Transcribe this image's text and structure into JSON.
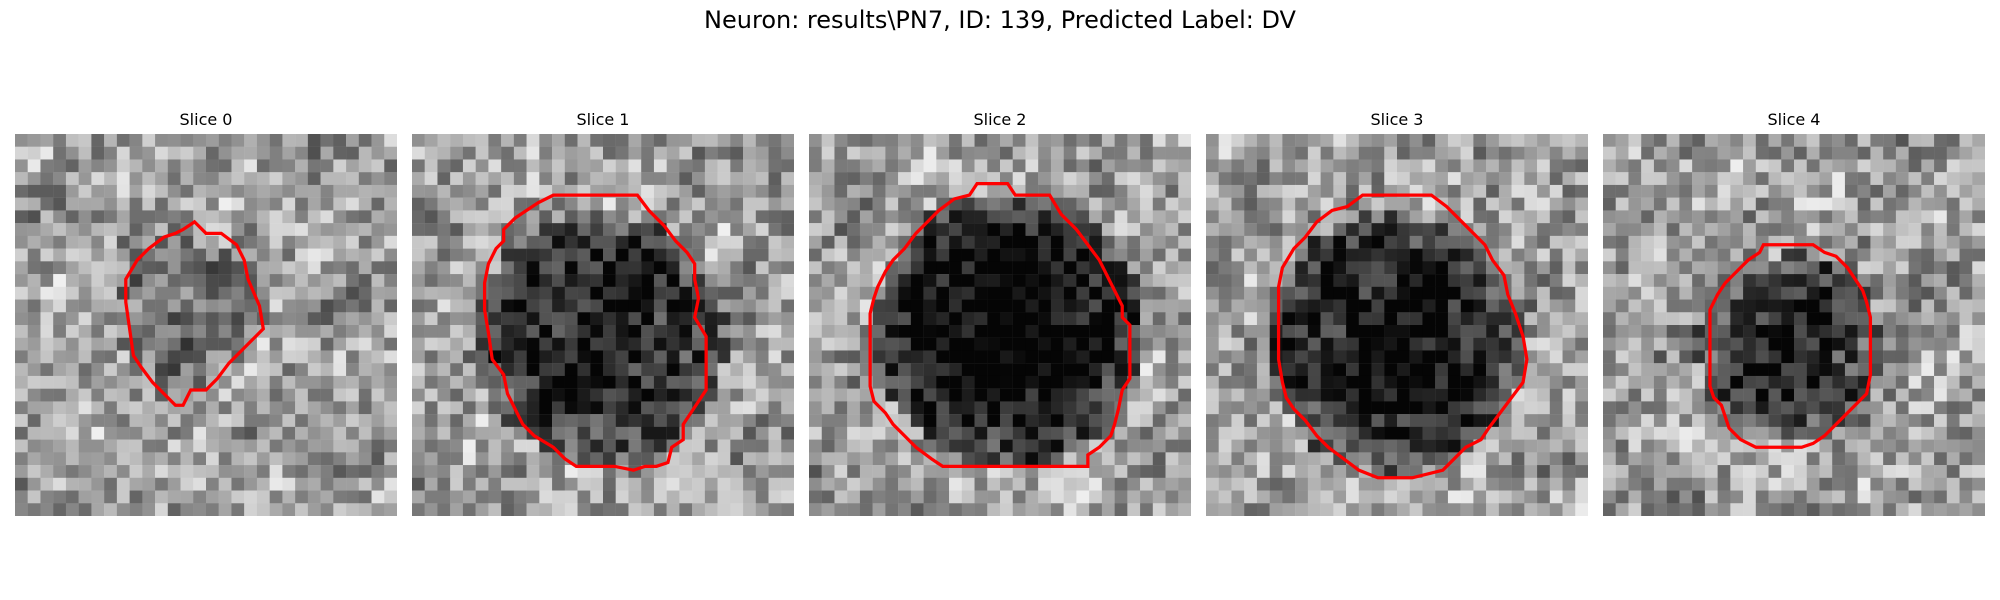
{
  "figure": {
    "title": "Neuron: results\\PN7, ID: 139, Predicted Label: DV"
  },
  "slices": [
    {
      "label": "Slice 0"
    },
    {
      "label": "Slice 1"
    },
    {
      "label": "Slice 2"
    },
    {
      "label": "Slice 3"
    },
    {
      "label": "Slice 4"
    }
  ],
  "colors": {
    "contour": "#ff0000"
  }
}
